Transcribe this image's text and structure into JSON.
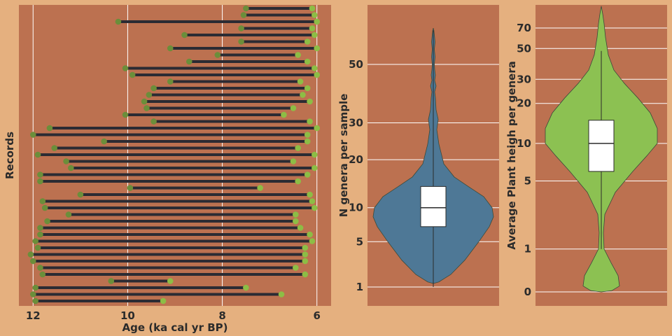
{
  "colors": {
    "page_background": "#e5b07f",
    "panel_background": "#bc7150",
    "segment": "#2b2b33",
    "start_point": "#6b8e3a",
    "end_point": "#8dbd45",
    "violin_n_genera": "#4e7896",
    "violin_plant_height": "#8cc152",
    "box": "#ffffff"
  },
  "chart_data": [
    {
      "type": "dumbbell",
      "xlabel": "Age (ka cal yr BP)",
      "ylabel": "Records",
      "x_ticks": [
        "12",
        "10",
        "8",
        "6"
      ],
      "xlim": [
        12.3,
        5.7
      ],
      "x_reversed": true,
      "grid": "vertical lines",
      "records": [
        [
          7.5,
          6.1
        ],
        [
          7.55,
          6.05
        ],
        [
          10.2,
          6.0
        ],
        [
          7.6,
          6.1
        ],
        [
          8.8,
          6.05
        ],
        [
          7.6,
          6.2
        ],
        [
          9.1,
          6.0
        ],
        [
          8.1,
          6.4
        ],
        [
          8.7,
          6.2
        ],
        [
          10.05,
          6.05
        ],
        [
          9.9,
          6.0
        ],
        [
          9.1,
          6.35
        ],
        [
          9.45,
          6.2
        ],
        [
          9.55,
          6.3
        ],
        [
          9.65,
          6.15
        ],
        [
          9.6,
          6.5
        ],
        [
          10.05,
          6.7
        ],
        [
          9.45,
          6.15
        ],
        [
          11.65,
          6.0
        ],
        [
          12.0,
          6.2
        ],
        [
          10.5,
          6.2
        ],
        [
          11.55,
          6.4
        ],
        [
          11.9,
          6.05
        ],
        [
          11.3,
          6.5
        ],
        [
          11.2,
          6.05
        ],
        [
          11.85,
          6.2
        ],
        [
          11.85,
          6.4
        ],
        [
          9.95,
          7.2
        ],
        [
          11.0,
          6.15
        ],
        [
          11.8,
          6.1
        ],
        [
          11.75,
          6.05
        ],
        [
          11.25,
          6.45
        ],
        [
          11.7,
          6.45
        ],
        [
          11.85,
          6.35
        ],
        [
          11.85,
          6.15
        ],
        [
          11.95,
          6.1
        ],
        [
          11.9,
          6.25
        ],
        [
          12.05,
          6.25
        ],
        [
          12.0,
          6.25
        ],
        [
          11.85,
          6.45
        ],
        [
          11.8,
          6.25
        ],
        [
          10.35,
          9.1
        ],
        [
          11.95,
          7.5
        ],
        [
          12.0,
          6.75
        ],
        [
          11.95,
          9.25
        ]
      ]
    },
    {
      "type": "violin",
      "ylabel": "N genera per sample",
      "y_scale": "sqrt",
      "y_ticks": [
        1,
        5,
        10,
        20,
        30,
        50
      ],
      "ylim": [
        0,
        72
      ],
      "box": {
        "q1": 7,
        "median": 10,
        "q3": 14,
        "whisker_low": 1,
        "whisker_high": 64
      }
    },
    {
      "type": "violin",
      "ylabel": "Average Plant heigh per genera",
      "y_scale": "log1p",
      "y_ticks": [
        0,
        1,
        5,
        10,
        20,
        30,
        50,
        70
      ],
      "ylim": [
        -0.3,
        120
      ],
      "box": {
        "q1": 6,
        "median": 10,
        "q3": 15,
        "whisker_low": 1,
        "whisker_high": 48
      }
    }
  ]
}
